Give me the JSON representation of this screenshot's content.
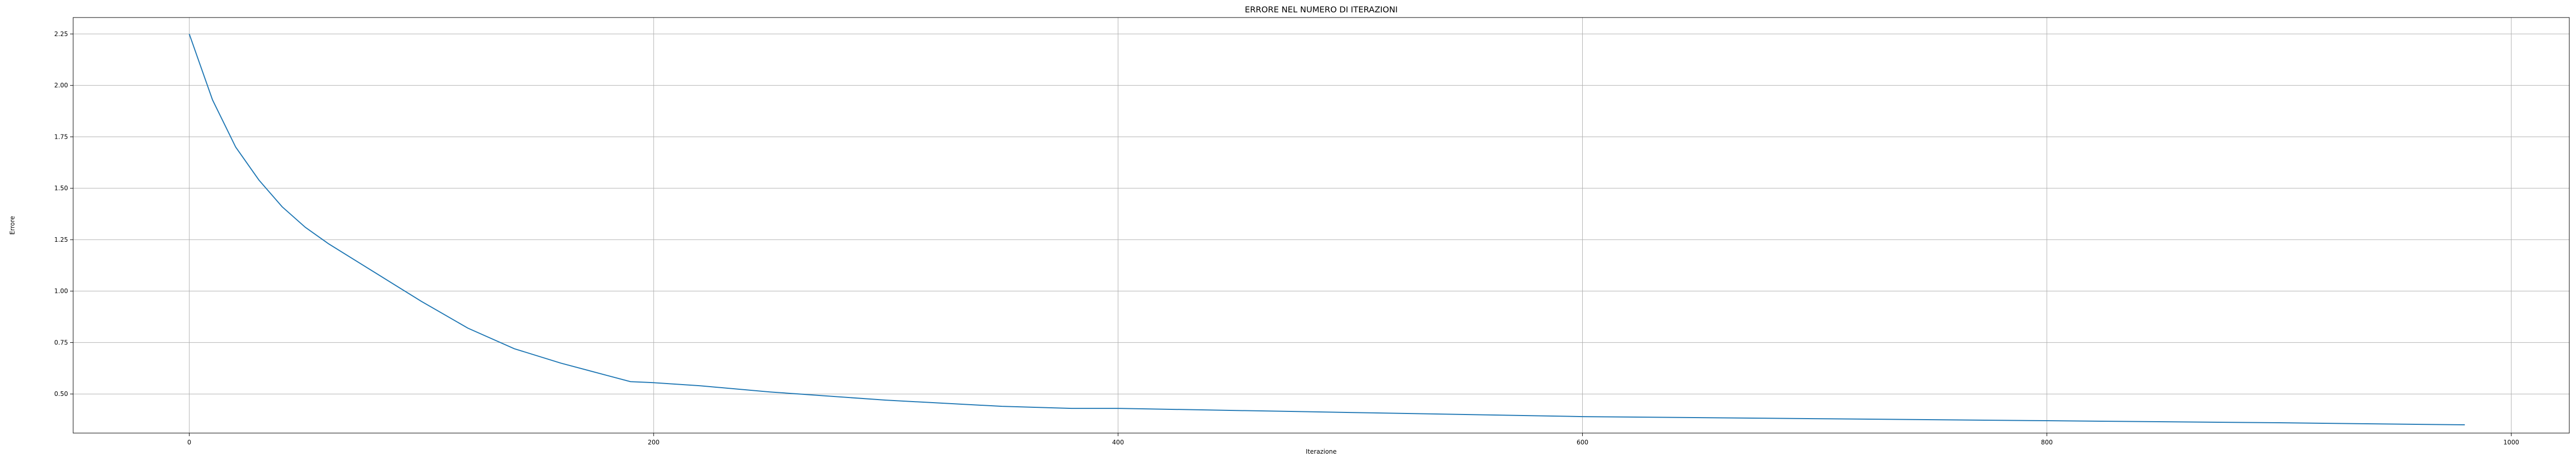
{
  "chart_data": {
    "type": "line",
    "title": "ERRORE NEL NUMERO DI ITERAZIONI",
    "xlabel": "Iterazione",
    "ylabel": "Errore",
    "xlim": [
      -50,
      1025
    ],
    "ylim": [
      0.31,
      2.33
    ],
    "grid": true,
    "x_ticks": [
      {
        "value": 0,
        "label": "0"
      },
      {
        "value": 200,
        "label": "200"
      },
      {
        "value": 400,
        "label": "400"
      },
      {
        "value": 600,
        "label": "600"
      },
      {
        "value": 800,
        "label": "800"
      },
      {
        "value": 1000,
        "label": "1000"
      }
    ],
    "y_ticks": [
      {
        "value": 0.5,
        "label": "0.50"
      },
      {
        "value": 0.75,
        "label": "0.75"
      },
      {
        "value": 1.0,
        "label": "1.00"
      },
      {
        "value": 1.25,
        "label": "1.25"
      },
      {
        "value": 1.5,
        "label": "1.50"
      },
      {
        "value": 1.75,
        "label": "1.75"
      },
      {
        "value": 2.0,
        "label": "2.00"
      },
      {
        "value": 2.25,
        "label": "2.25"
      }
    ],
    "series": [
      {
        "color": "#1f77b4",
        "x": [
          0,
          10,
          20,
          30,
          40,
          50,
          60,
          80,
          100,
          120,
          140,
          160,
          180,
          190,
          200,
          220,
          250,
          300,
          350,
          380,
          400,
          500,
          600,
          700,
          800,
          900,
          980
        ],
        "y": [
          2.25,
          1.93,
          1.7,
          1.54,
          1.41,
          1.31,
          1.23,
          1.09,
          0.95,
          0.82,
          0.72,
          0.65,
          0.59,
          0.56,
          0.555,
          0.54,
          0.51,
          0.47,
          0.44,
          0.43,
          0.43,
          0.41,
          0.39,
          0.38,
          0.37,
          0.36,
          0.35
        ]
      }
    ]
  }
}
